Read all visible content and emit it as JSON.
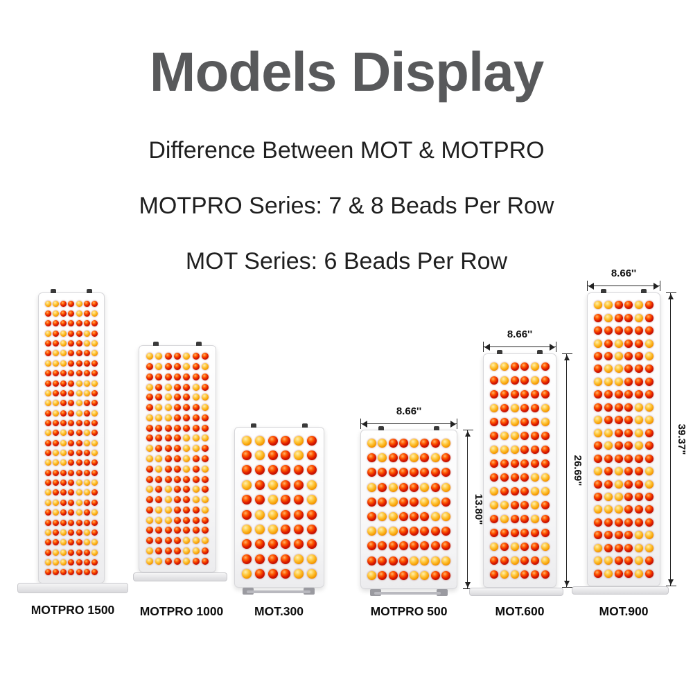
{
  "header": {
    "title": "Models Display",
    "line1": "Difference Between MOT & MOTPRO",
    "line2": "MOTPRO Series: 7 & 8 Beads Per Row",
    "line3": "MOT Series: 6 Beads Per Row"
  },
  "colors": {
    "title_gray": "#58595b",
    "bead_red": "#d81600",
    "bead_orange": "#f59b00",
    "dim_line": "#222222"
  },
  "models": [
    {
      "name": "MOTPRO 1500",
      "beads_per_row": 7,
      "rows": 28
    },
    {
      "name": "MOTPRO 1000",
      "beads_per_row": 7,
      "rows": 21
    },
    {
      "name": "MOT.300",
      "beads_per_row": 6,
      "rows": 10
    },
    {
      "name": "MOTPRO 500",
      "beads_per_row": 8,
      "rows": 10,
      "width_label": "8.66''",
      "height_label": "13.80\""
    },
    {
      "name": "MOT.600",
      "beads_per_row": 6,
      "rows": 16,
      "width_label": "8.66''",
      "height_label": "26.69\""
    },
    {
      "name": "MOT.900",
      "beads_per_row": 6,
      "rows": 22,
      "width_label": "8.66''",
      "height_label": "39.37\""
    }
  ]
}
